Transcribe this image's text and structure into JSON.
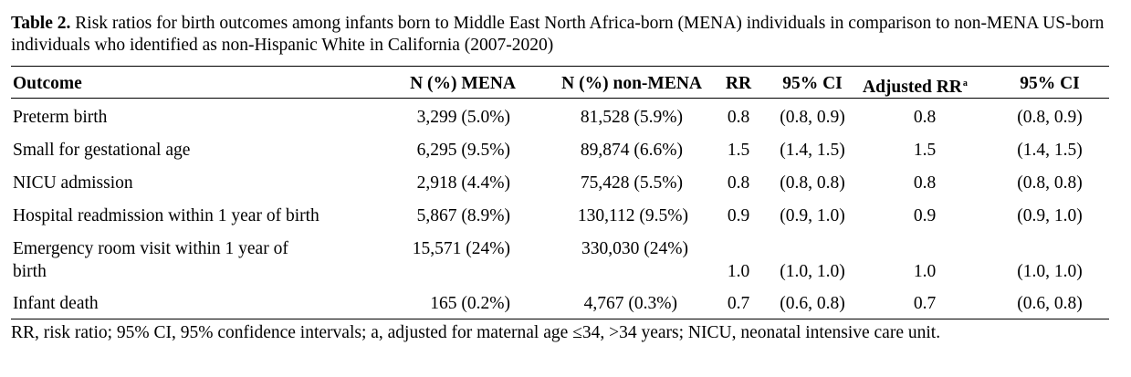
{
  "table": {
    "caption_label": "Table 2.",
    "caption_text": " Risk ratios for birth outcomes among infants born to Middle East North Africa-born (MENA) individuals in comparison to non-MENA US-born individuals who identified as non-Hispanic White in California (2007-2020)",
    "headers": {
      "outcome": "Outcome",
      "n_mena": "N (%) MENA",
      "n_non_mena": "N (%) non-MENA",
      "rr": "RR",
      "ci": "95% CI",
      "adj_rr": "Adjusted RR",
      "adj_rr_sup": "a",
      "adj_ci": "95% CI"
    },
    "rows": [
      {
        "outcome": "Preterm birth",
        "n_mena": "3,299 (5.0%)",
        "n_non_mena": "81,528 (5.9%)",
        "rr": "0.8",
        "ci": "(0.8, 0.9)",
        "adj_rr": "0.8",
        "adj_ci": "(0.8, 0.9)"
      },
      {
        "outcome": "Small for gestational age",
        "n_mena": "6,295 (9.5%)",
        "n_non_mena": "89,874 (6.6%)",
        "rr": "1.5",
        "ci": "(1.4, 1.5)",
        "adj_rr": "1.5",
        "adj_ci": "(1.4, 1.5)"
      },
      {
        "outcome": "NICU admission",
        "n_mena": "2,918 (4.4%)",
        "n_non_mena": "75,428 (5.5%)",
        "rr": "0.8",
        "ci": "(0.8, 0.8)",
        "adj_rr": "0.8",
        "adj_ci": "(0.8, 0.8)"
      },
      {
        "outcome": "Hospital readmission within 1 year of birth",
        "n_mena": "5,867 (8.9%)",
        "n_non_mena": "130,112 (9.5%)",
        "rr": "0.9",
        "ci": "(0.9, 1.0)",
        "adj_rr": "0.9",
        "adj_ci": "(0.9, 1.0)"
      },
      {
        "outcome_line1": "Emergency room visit within 1 year of",
        "outcome_line2": "birth",
        "n_mena": "15,571 (24%)",
        "n_non_mena": "330,030 (24%)",
        "rr": "1.0",
        "ci": "(1.0, 1.0)",
        "adj_rr": "1.0",
        "adj_ci": "(1.0, 1.0)"
      },
      {
        "outcome": "Infant death",
        "n_mena": "165 (0.2%)",
        "n_non_mena": "4,767 (0.3%)",
        "rr": "0.7",
        "ci": "(0.6, 0.8)",
        "adj_rr": "0.7",
        "adj_ci": "(0.6, 0.8)"
      }
    ],
    "footnote": "RR, risk ratio; 95% CI, 95% confidence intervals; a, adjusted for maternal age ≤34, >34 years; NICU, neonatal intensive care unit."
  }
}
